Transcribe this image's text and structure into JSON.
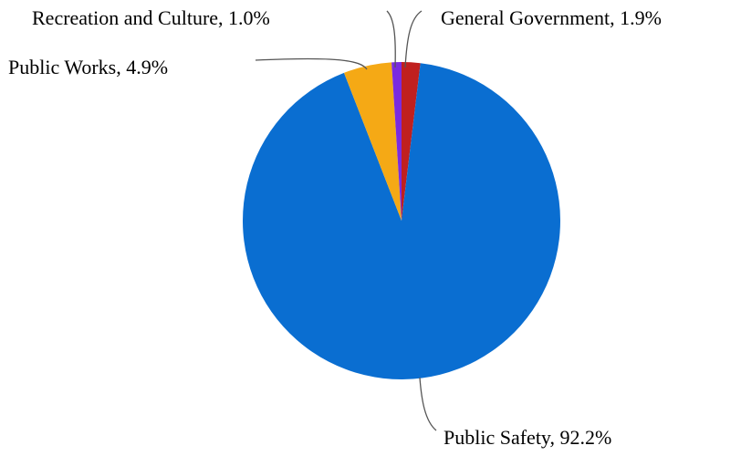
{
  "chart_data": {
    "type": "pie",
    "title": "",
    "slices": [
      {
        "name": "General Government",
        "value": 1.9,
        "label": "General Government, 1.9%",
        "color": "#C0201F"
      },
      {
        "name": "Public Safety",
        "value": 92.2,
        "label": "Public Safety, 92.2%",
        "color": "#0A6ED1"
      },
      {
        "name": "Public Works",
        "value": 4.9,
        "label": "Public Works, 4.9%",
        "color": "#F5A915"
      },
      {
        "name": "Recreation and Culture",
        "value": 1.0,
        "label": "Recreation and Culture, 1.0%",
        "color": "#7A2BE0"
      }
    ],
    "start_angle_deg": 0,
    "direction": "clockwise"
  }
}
